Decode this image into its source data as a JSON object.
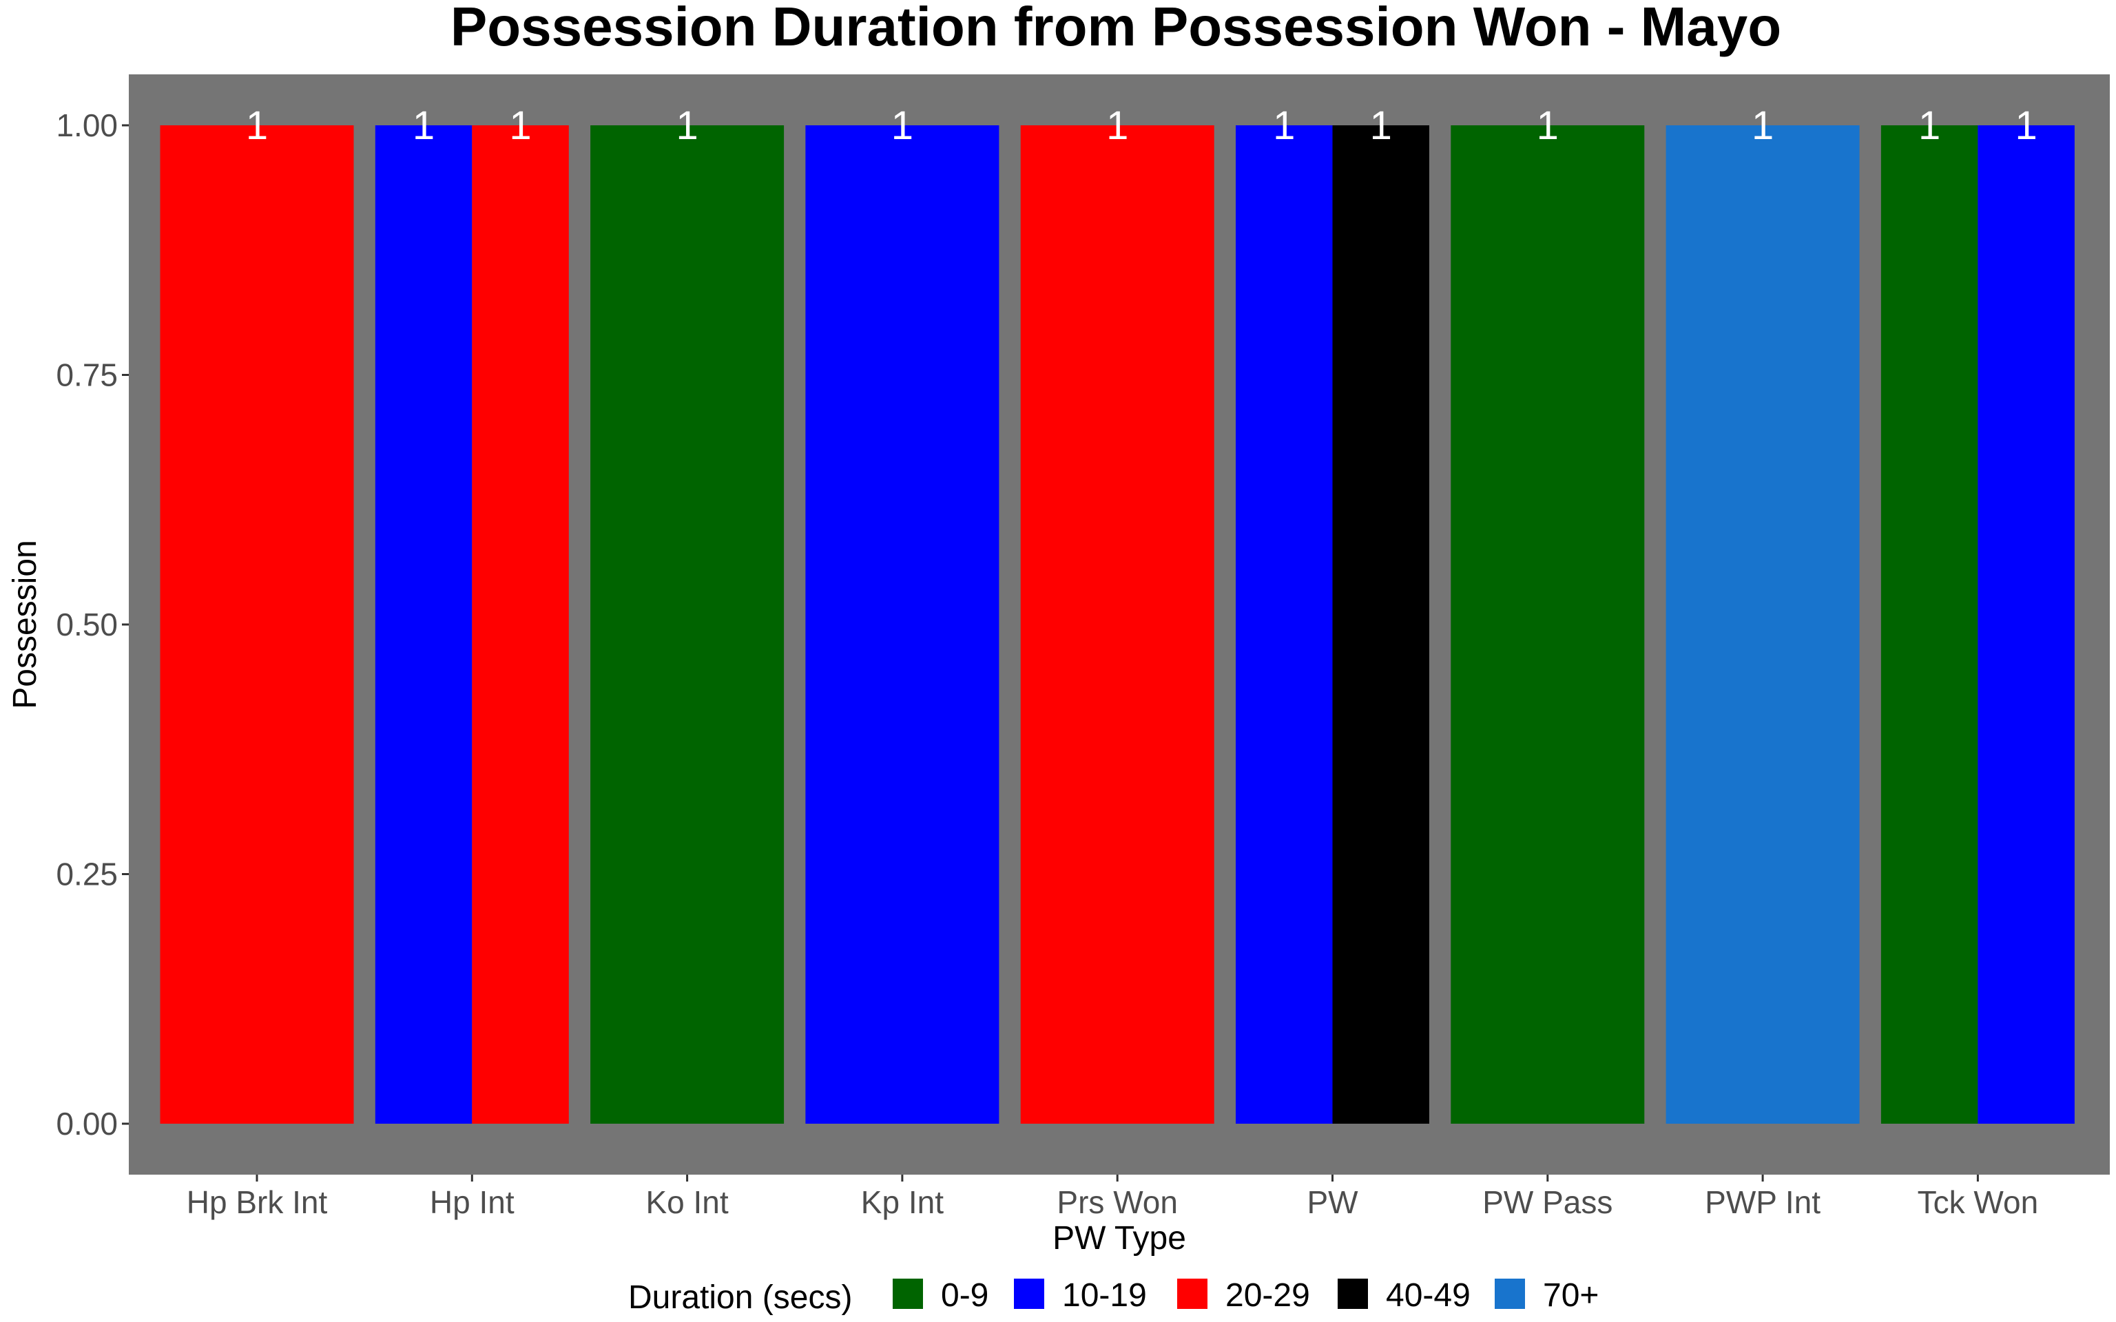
{
  "chart_data": {
    "type": "bar",
    "title": "Possession Duration from Possession Won - Mayo",
    "xlabel": "PW Type",
    "ylabel": "Possession",
    "ylim": [
      0,
      1
    ],
    "yticks": [
      "0.00",
      "0.25",
      "0.50",
      "0.75",
      "1.00"
    ],
    "ytick_values": [
      0,
      0.25,
      0.5,
      0.75,
      1
    ],
    "grid": false,
    "panel_background": "#757575",
    "categories": [
      "Hp Brk Int",
      "Hp Int",
      "Ko Int",
      "Kp Int",
      "Prs Won",
      "PW",
      "PW Pass",
      "PWP Int",
      "Tck Won"
    ],
    "bars": [
      [
        {
          "duration": "20-29",
          "value": 1,
          "label": "1"
        }
      ],
      [
        {
          "duration": "10-19",
          "value": 1,
          "label": "1"
        },
        {
          "duration": "20-29",
          "value": 1,
          "label": "1"
        }
      ],
      [
        {
          "duration": "0-9",
          "value": 1,
          "label": "1"
        }
      ],
      [
        {
          "duration": "10-19",
          "value": 1,
          "label": "1"
        }
      ],
      [
        {
          "duration": "20-29",
          "value": 1,
          "label": "1"
        }
      ],
      [
        {
          "duration": "10-19",
          "value": 1,
          "label": "1"
        },
        {
          "duration": "40-49",
          "value": 1,
          "label": "1"
        }
      ],
      [
        {
          "duration": "0-9",
          "value": 1,
          "label": "1"
        }
      ],
      [
        {
          "duration": "70+",
          "value": 1,
          "label": "1"
        }
      ],
      [
        {
          "duration": "0-9",
          "value": 1,
          "label": "1"
        },
        {
          "duration": "10-19",
          "value": 1,
          "label": "1"
        }
      ]
    ],
    "legend": {
      "title": "Duration (secs)",
      "position": "bottom",
      "items": [
        {
          "name": "0-9",
          "color": "#006400"
        },
        {
          "name": "10-19",
          "color": "#0000FF"
        },
        {
          "name": "20-29",
          "color": "#FF0000"
        },
        {
          "name": "40-49",
          "color": "#000000"
        },
        {
          "name": "70+",
          "color": "#1874CD"
        }
      ]
    }
  }
}
